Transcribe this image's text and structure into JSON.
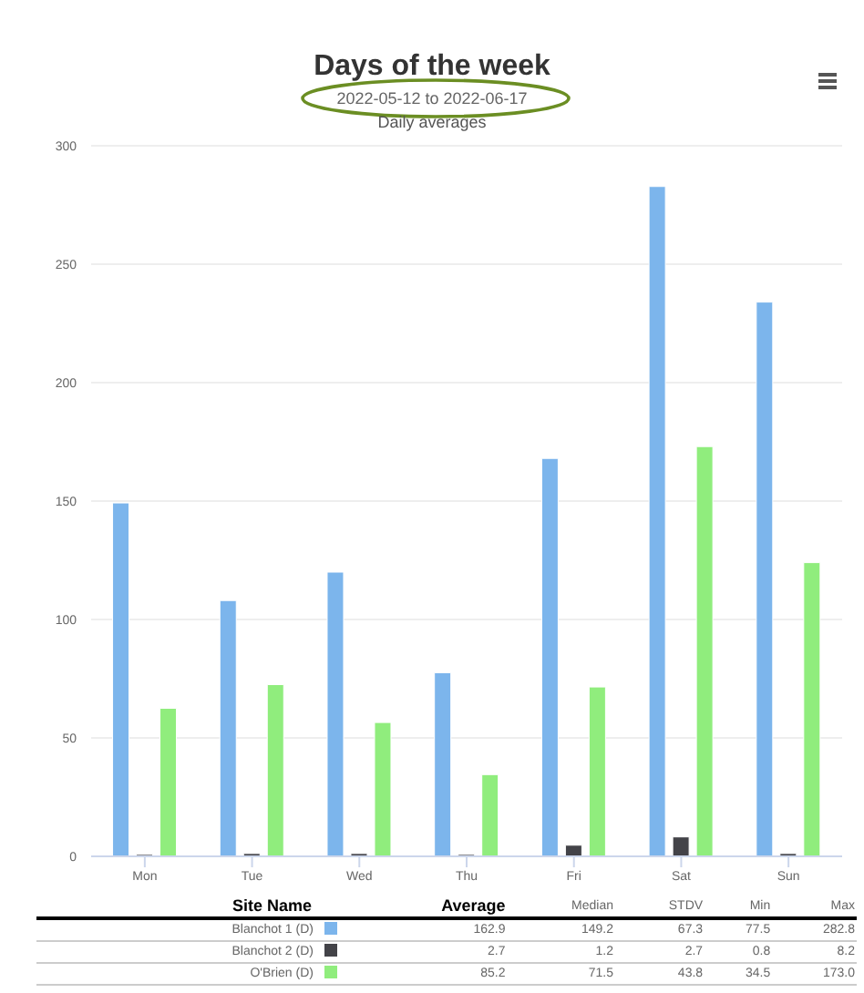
{
  "chart_data": {
    "type": "bar",
    "title": "Days of the week",
    "subtitle": "2022-05-12 to 2022-06-17",
    "ylabel": "Daily averages",
    "categories": [
      "Mon",
      "Tue",
      "Wed",
      "Thu",
      "Fri",
      "Sat",
      "Sun"
    ],
    "series": [
      {
        "name": "Blanchot 1 (D)",
        "color": "#7cb5ec",
        "values": [
          149.2,
          108,
          120,
          77.5,
          168,
          282.8,
          234
        ]
      },
      {
        "name": "Blanchot 2 (D)",
        "color": "#434348",
        "values": [
          0.8,
          1.2,
          1.2,
          0.8,
          4.7,
          8.2,
          1.2
        ]
      },
      {
        "name": "O'Brien (D)",
        "color": "#90ed7d",
        "values": [
          62.5,
          72.5,
          56.5,
          34.5,
          71.5,
          173.0,
          124
        ]
      }
    ],
    "ylim": [
      0,
      300
    ],
    "yticks": [
      0,
      50,
      100,
      150,
      200,
      250,
      300
    ],
    "grid": "y",
    "legend": "bottom",
    "annotations": [
      "Site Name",
      "Average",
      "Median",
      "STDV",
      "Min",
      "Max",
      "162.9",
      "149.2",
      "67.3",
      "77.5",
      "282.8",
      "2.7",
      "1.2",
      "2.7",
      "0.8",
      "8.2",
      "85.2",
      "71.5",
      "43.8",
      "34.5",
      "173.0"
    ]
  }
}
